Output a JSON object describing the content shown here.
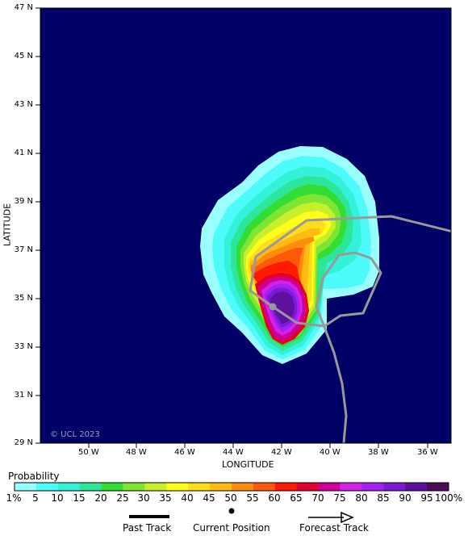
{
  "axes": {
    "y_label": "LATITUDE",
    "x_label": "LONGITUDE",
    "y_ticks": [
      "47 N",
      "45 N",
      "43 N",
      "41 N",
      "39 N",
      "37 N",
      "35 N",
      "33 N",
      "31 N",
      "29 N"
    ],
    "x_ticks": [
      "50 W",
      "48 W",
      "46 W",
      "44 W",
      "42 W",
      "40 W",
      "38 W",
      "36 W"
    ]
  },
  "copyright": "© UCL 2023",
  "legend": {
    "title": "Probability",
    "labels": [
      "1%",
      "5",
      "10",
      "15",
      "20",
      "25",
      "30",
      "35",
      "40",
      "45",
      "50",
      "55",
      "60",
      "65",
      "70",
      "75",
      "80",
      "85",
      "90",
      "95",
      "100%"
    ],
    "colors": [
      "#99ffff",
      "#4dfbfb",
      "#33f2d9",
      "#2ee69a",
      "#33dd33",
      "#7fe533",
      "#c8f02a",
      "#ffff19",
      "#ffdd1a",
      "#ffbb11",
      "#ff8c0d",
      "#ff5a0a",
      "#ff1a00",
      "#e00030",
      "#cc0099",
      "#d422e6",
      "#a51ff2",
      "#7a1ad5",
      "#5e119e",
      "#4d0a55"
    ],
    "past_track": "Past Track",
    "current_position": "Current Position",
    "forecast_track": "Forecast Track"
  },
  "colors": {
    "ocean": "#000066",
    "track": "#999999"
  }
}
